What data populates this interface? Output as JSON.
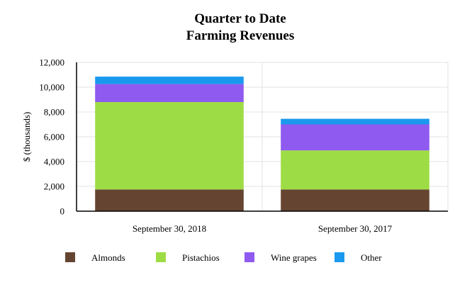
{
  "chart_data": {
    "type": "bar",
    "stacked": true,
    "title_lines": [
      "Quarter to Date",
      "Farming Revenues"
    ],
    "xlabel": "",
    "ylabel": "$ (thousands)",
    "ylim": [
      0,
      12000
    ],
    "yticks": [
      0,
      2000,
      4000,
      6000,
      8000,
      10000,
      12000
    ],
    "ytick_labels": [
      "0",
      "2,000",
      "4,000",
      "6,000",
      "8,000",
      "10,000",
      "12,000"
    ],
    "grid": true,
    "legend_position": "bottom",
    "categories": [
      "September 30, 2018",
      "September 30, 2017"
    ],
    "series": [
      {
        "name": "Almonds",
        "color": "#654532",
        "values": [
          1750,
          1750
        ]
      },
      {
        "name": "Pistachios",
        "color": "#9edc45",
        "values": [
          7050,
          3150
        ]
      },
      {
        "name": "Wine grapes",
        "color": "#8f5aef",
        "values": [
          1450,
          2100
        ]
      },
      {
        "name": "Other",
        "color": "#1a99ee",
        "values": [
          600,
          450
        ]
      }
    ]
  }
}
